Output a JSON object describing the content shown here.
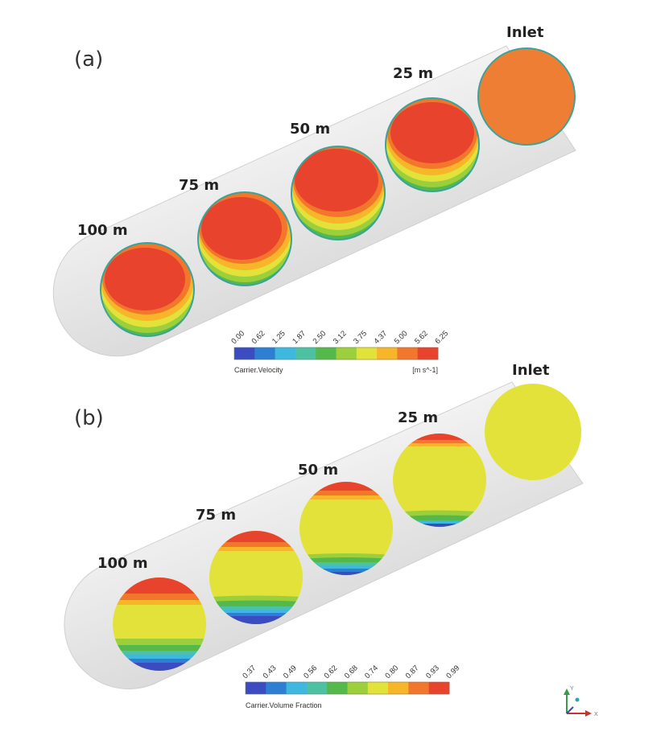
{
  "panels": [
    {
      "id": "a",
      "label": "(a)",
      "inlet_label": "Inlet",
      "sections": [
        "25 m",
        "50 m",
        "75 m",
        "100 m"
      ],
      "colorbar": {
        "title": "Carrier.Velocity",
        "unit": "[m s^-1]",
        "ticks": [
          "0.00",
          "0.62",
          "1.25",
          "1.87",
          "2.50",
          "3.12",
          "3.75",
          "4.37",
          "5.00",
          "5.62",
          "6.25"
        ]
      }
    },
    {
      "id": "b",
      "label": "(b)",
      "inlet_label": "Inlet",
      "sections": [
        "25 m",
        "50 m",
        "75 m",
        "100 m"
      ],
      "colorbar": {
        "title": "Carrier.Volume Fraction",
        "unit": "",
        "ticks": [
          "0.37",
          "0.43",
          "0.49",
          "0.56",
          "0.62",
          "0.68",
          "0.74",
          "0.80",
          "0.87",
          "0.93",
          "0.99"
        ]
      }
    }
  ],
  "axis_triad": {
    "y": "Y",
    "x": "X"
  },
  "colors": {
    "palette": [
      "#3b4cc0",
      "#2e7fd1",
      "#3fb8e0",
      "#4dc2a3",
      "#55b84a",
      "#9bcf3b",
      "#e2e23a",
      "#f7b52a",
      "#f2762b",
      "#e8432c"
    ],
    "pipe": "#e9e9e9",
    "pipe_edge": "#c8c8c8",
    "ring": "#3aa39a"
  }
}
